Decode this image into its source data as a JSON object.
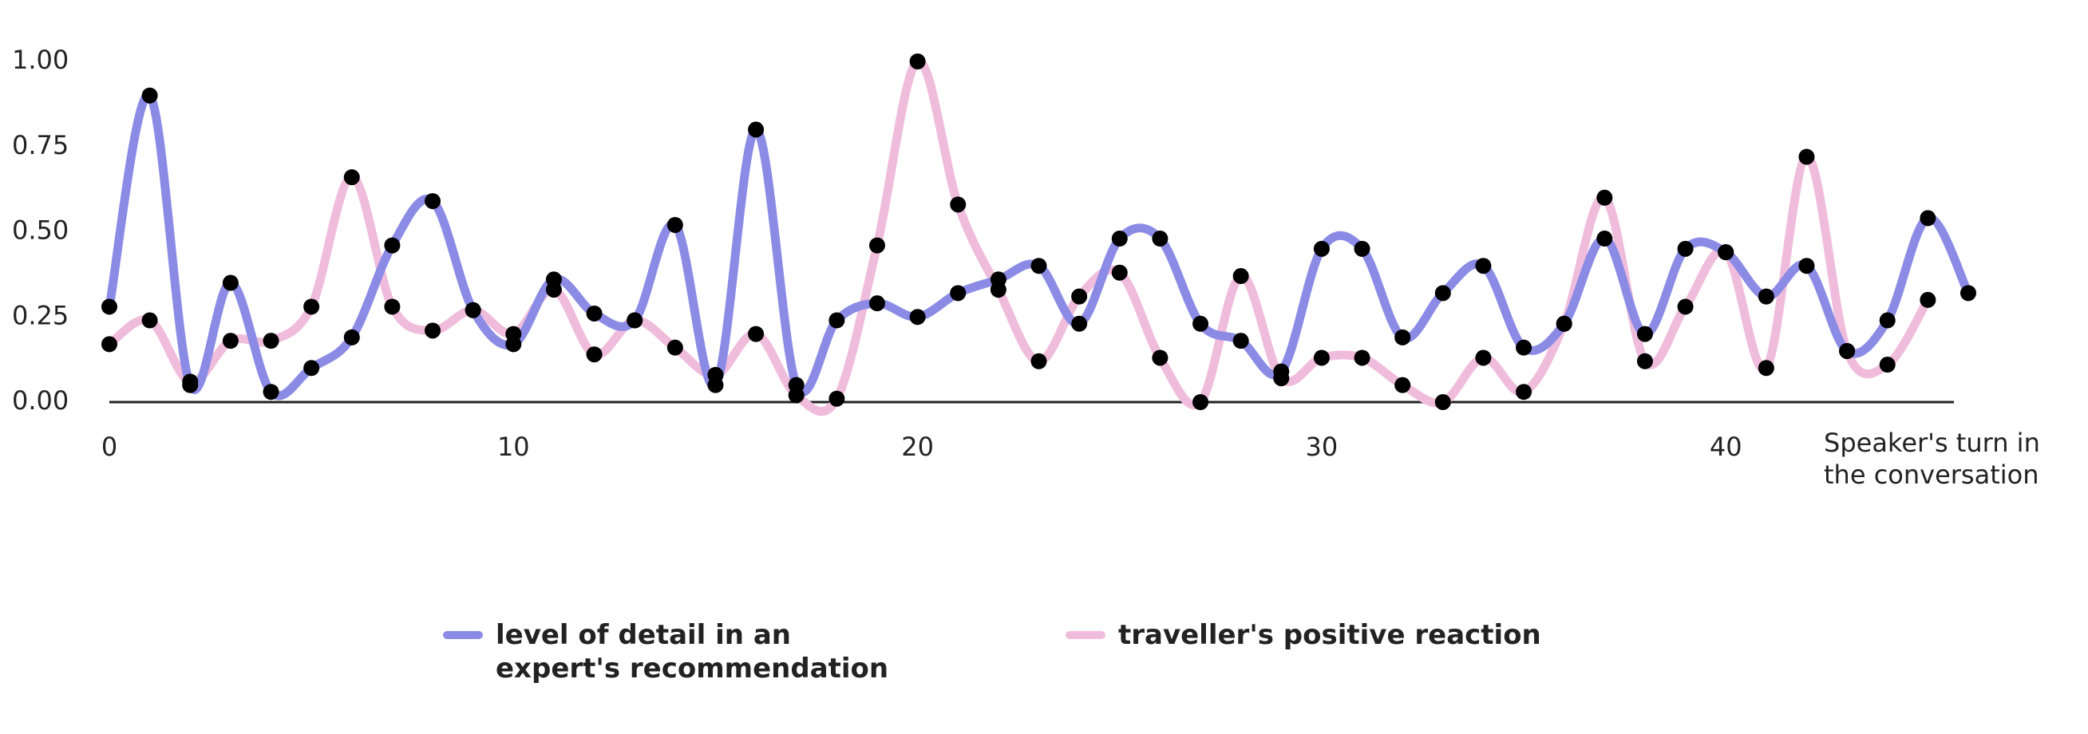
{
  "chart_data": {
    "type": "line",
    "x": [
      0,
      1,
      2,
      3,
      4,
      5,
      6,
      7,
      8,
      9,
      10,
      11,
      12,
      13,
      14,
      15,
      16,
      17,
      18,
      19,
      20,
      21,
      22,
      23,
      24,
      25,
      26,
      27,
      28,
      29,
      30,
      31,
      32,
      33,
      34,
      35,
      36,
      37,
      38,
      39,
      40,
      41,
      42,
      43,
      44,
      45,
      46
    ],
    "series": [
      {
        "name": "level of detail in an expert's recommendation",
        "color": "#8b8be6",
        "values": [
          0.28,
          0.9,
          0.05,
          0.35,
          0.03,
          0.1,
          0.19,
          0.46,
          0.59,
          0.27,
          0.17,
          0.36,
          0.26,
          0.24,
          0.52,
          0.05,
          0.8,
          0.05,
          0.24,
          0.29,
          0.25,
          0.32,
          0.36,
          0.4,
          0.23,
          0.48,
          0.48,
          0.23,
          0.18,
          0.09,
          0.45,
          0.45,
          0.19,
          0.32,
          0.4,
          0.16,
          0.23,
          0.48,
          0.2,
          0.45,
          0.44,
          0.31,
          0.4,
          0.15,
          0.24,
          0.54,
          0.32
        ]
      },
      {
        "name": "traveller's positive reaction",
        "color": "#f0bcdc",
        "values": [
          0.17,
          0.24,
          0.06,
          0.18,
          0.18,
          0.28,
          0.66,
          0.28,
          0.21,
          0.27,
          0.2,
          0.33,
          0.14,
          0.24,
          0.16,
          0.08,
          0.2,
          0.02,
          0.01,
          0.46,
          1.0,
          0.58,
          0.33,
          0.12,
          0.31,
          0.38,
          0.13,
          0.0,
          0.37,
          0.07,
          0.13,
          0.13,
          0.05,
          0.0,
          0.13,
          0.03,
          0.23,
          0.6,
          0.12,
          0.28,
          0.44,
          0.1,
          0.72,
          0.15,
          0.11,
          0.3,
          null
        ]
      }
    ],
    "x_label": "Speaker's turn in the conversation",
    "xlim": [
      0,
      46
    ],
    "xticks": [
      0,
      10,
      20,
      30,
      40
    ],
    "ylim": [
      0,
      1
    ],
    "yticks": [
      {
        "value": 0,
        "label": "0.00"
      },
      {
        "value": 0.25,
        "label": "0.25"
      },
      {
        "value": 0.5,
        "label": "0.50"
      },
      {
        "value": 0.75,
        "label": "0.75"
      },
      {
        "value": 1,
        "label": "1.00"
      }
    ],
    "marker_color": "#000000",
    "grid": false
  }
}
